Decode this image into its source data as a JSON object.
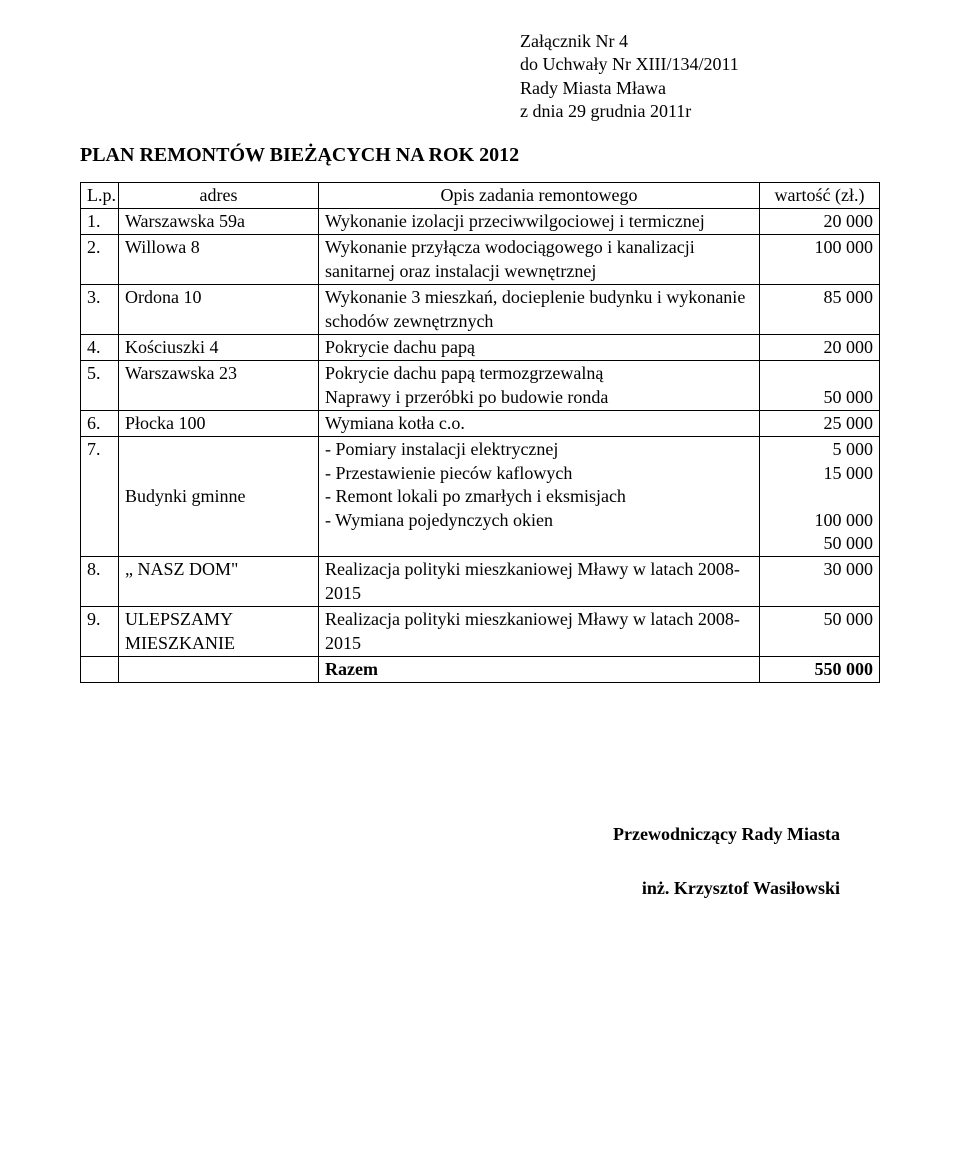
{
  "attachment": {
    "line1": "Załącznik Nr 4",
    "line2": "do Uchwały Nr XIII/134/2011",
    "line3": "Rady Miasta Mława",
    "line4": "z dnia 29 grudnia 2011r"
  },
  "title": "PLAN REMONTÓW BIEŻĄCYCH NA ROK 2012",
  "headers": {
    "lp": "L.p.",
    "addr": "adres",
    "desc": "Opis zadania remontowego",
    "val": "wartość (zł.)"
  },
  "rows": [
    {
      "lp": "1.",
      "addr": "Warszawska 59a",
      "desc": "Wykonanie izolacji przeciwwilgociowej i termicznej",
      "val": "20 000"
    },
    {
      "lp": "2.",
      "addr": "Willowa 8",
      "desc": "Wykonanie przyłącza wodociągowego i kanalizacji sanitarnej oraz instalacji wewnętrznej",
      "val": "100 000"
    },
    {
      "lp": "3.",
      "addr": "Ordona  10",
      "desc": "Wykonanie 3 mieszkań, docieplenie budynku i wykonanie schodów zewnętrznych",
      "val": "85 000"
    },
    {
      "lp": "4.",
      "addr": "Kościuszki 4",
      "desc": "Pokrycie dachu papą",
      "val": "20 000"
    },
    {
      "lp": "5.",
      "addr": "Warszawska 23",
      "desc_line1": "Pokrycie dachu papą termozgrzewalną",
      "desc_line2": "Naprawy i przeróbki po budowie ronda",
      "val": "50 000"
    },
    {
      "lp": "6.",
      "addr": "Płocka 100",
      "desc": "Wymiana kotła c.o.",
      "val": "25 000"
    },
    {
      "lp": "7.",
      "addr": "Budynki gminne",
      "desc_l1": "- Pomiary instalacji elektrycznej",
      "desc_l2": "- Przestawienie pieców kaflowych",
      "desc_l3": "- Remont lokali po zmarłych i eksmisjach",
      "desc_l4": "- Wymiana pojedynczych okien",
      "val_l1": "5 000",
      "val_l2": "15 000",
      "val_l3": "",
      "val_l4": "100 000",
      "val_l5": "50 000"
    },
    {
      "lp": "8.",
      "addr": "„ NASZ DOM\"",
      "desc": "Realizacja polityki mieszkaniowej Mławy w latach 2008-2015",
      "val": "30 000"
    },
    {
      "lp": "9.",
      "addr": "ULEPSZAMY MIESZKANIE",
      "desc": "Realizacja polityki mieszkaniowej Mławy w latach 2008-2015",
      "val": "50 000"
    }
  ],
  "total": {
    "label": "Razem",
    "value": "550 000"
  },
  "signature": {
    "title": "Przewodniczący Rady Miasta",
    "name": "inż. Krzysztof Wasiłowski"
  },
  "colors": {
    "text": "#000000",
    "background": "#ffffff",
    "border": "#000000"
  },
  "typography": {
    "font_family": "Times New Roman",
    "body_fontsize_pt": 13,
    "title_fontsize_pt": 15
  }
}
